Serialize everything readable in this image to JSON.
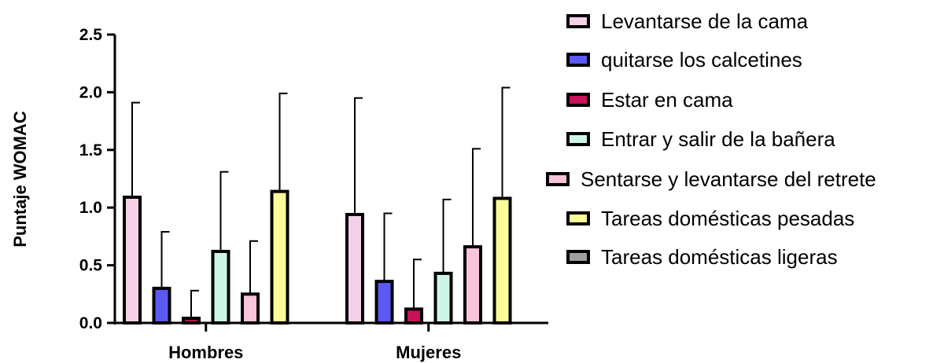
{
  "chart_data": {
    "type": "bar",
    "ylabel": "Puntaje WOMAC",
    "xlabel": "",
    "ylim": [
      0,
      2.5
    ],
    "yticks": [
      "0.0",
      "0.5",
      "1.0",
      "1.5",
      "2.0",
      "2.5"
    ],
    "categories": [
      "Hombres",
      "Mujeres"
    ],
    "legend_position": "right",
    "series": [
      {
        "name": "Levantarse de la cama",
        "color": "#f6cfe8",
        "values": [
          1.09,
          0.94
        ],
        "error": [
          0.82,
          1.01
        ]
      },
      {
        "name": "quitarse los calcetines",
        "color": "#5a5af2",
        "values": [
          0.3,
          0.36
        ],
        "error": [
          0.49,
          0.59
        ]
      },
      {
        "name": "Estar en cama",
        "color": "#c8135a",
        "values": [
          0.04,
          0.12
        ],
        "error": [
          0.24,
          0.43
        ]
      },
      {
        "name": "Entrar y salir de la bañera",
        "color": "#cdf6e6",
        "values": [
          0.62,
          0.43
        ],
        "error": [
          0.69,
          0.64
        ]
      },
      {
        "name": "Sentarse y levantarse del retrete",
        "color": "#f9c3da",
        "values": [
          0.25,
          0.66
        ],
        "error": [
          0.46,
          0.85
        ]
      },
      {
        "name": "Tareas domésticas pesadas",
        "color": "#fbfb9a",
        "values": [
          1.14,
          1.08
        ],
        "error": [
          0.85,
          0.96
        ]
      },
      {
        "name": "Tareas domésticas ligeras",
        "color": "#9e9e9e",
        "values": [
          null,
          null
        ],
        "error": [
          null,
          null
        ]
      }
    ]
  }
}
